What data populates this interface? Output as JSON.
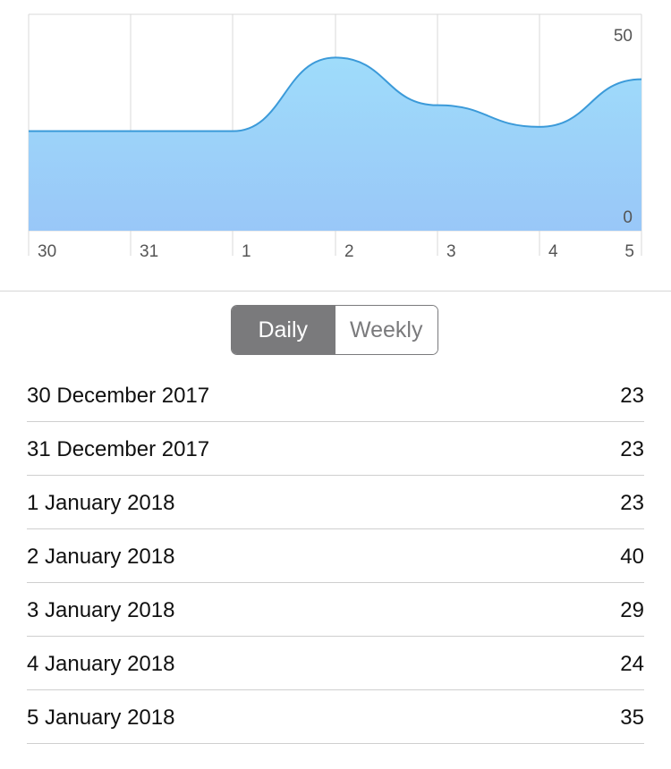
{
  "chart_data": {
    "type": "area",
    "x": [
      "30",
      "31",
      "1",
      "2",
      "3",
      "4",
      "5"
    ],
    "values": [
      23,
      23,
      23,
      40,
      29,
      24,
      35
    ],
    "ylim": [
      0,
      50
    ],
    "y_tick_labels": [
      "50",
      "0"
    ],
    "grid": true,
    "fill_color_top": "#9fdcfa",
    "fill_color_bottom": "#99c7f8",
    "line_color": "#3b9ad9",
    "grid_color": "#d9d9d9"
  },
  "segmented_control": {
    "daily_label": "Daily",
    "weekly_label": "Weekly",
    "selected": "Daily",
    "active_color": "#7a7a7c"
  },
  "rows": [
    {
      "date": "30 December 2017",
      "value": "23"
    },
    {
      "date": "31 December 2017",
      "value": "23"
    },
    {
      "date": "1 January 2018",
      "value": "23"
    },
    {
      "date": "2 January 2018",
      "value": "40"
    },
    {
      "date": "3 January 2018",
      "value": "29"
    },
    {
      "date": "4 January 2018",
      "value": "24"
    },
    {
      "date": "5 January 2018",
      "value": "35"
    }
  ]
}
